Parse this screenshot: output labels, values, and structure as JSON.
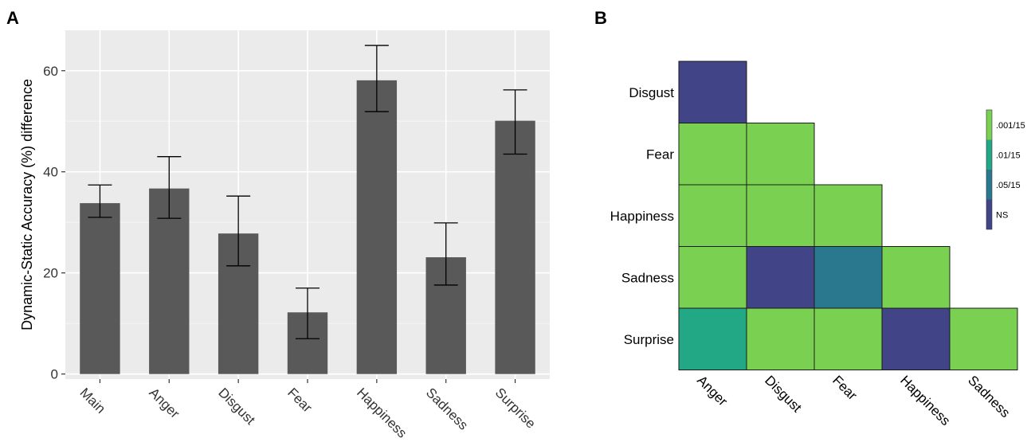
{
  "panels": {
    "a": "A",
    "b": "B"
  },
  "chart_data": [
    {
      "type": "bar",
      "panel": "A",
      "ylabel": "Dynamic-Static Accuracy (%) difference",
      "xlabel": "",
      "ylim": [
        -1,
        68
      ],
      "yticks": [
        0,
        20,
        40,
        60
      ],
      "categories": [
        "Main",
        "Anger",
        "Disgust",
        "Fear",
        "Happiness",
        "Sadness",
        "Surprise"
      ],
      "values": [
        33.8,
        36.7,
        27.8,
        12.2,
        58.1,
        23.1,
        50.1
      ],
      "error_low": [
        31.0,
        30.8,
        21.4,
        7.0,
        51.9,
        17.6,
        43.5
      ],
      "error_high": [
        37.4,
        43.0,
        35.2,
        17.0,
        65.0,
        29.9,
        56.2
      ],
      "bar_color": "#595959",
      "background": "#ebebeb",
      "grid": true
    },
    {
      "type": "heatmap",
      "panel": "B",
      "rows": [
        "Disgust",
        "Fear",
        "Happiness",
        "Sadness",
        "Surprise"
      ],
      "columns": [
        "Anger",
        "Disgust",
        "Fear",
        "Happiness",
        "Sadness"
      ],
      "cells": [
        [
          "NS"
        ],
        [
          ".001/15",
          ".001/15"
        ],
        [
          ".001/15",
          ".001/15",
          ".001/15"
        ],
        [
          ".001/15",
          "NS",
          ".05/15",
          ".001/15"
        ],
        [
          ".01/15",
          ".001/15",
          ".001/15",
          "NS",
          ".001/15"
        ]
      ],
      "legend": {
        "placement": "right",
        "levels": [
          {
            "label": ".001/15",
            "color": "#7ad151"
          },
          {
            "label": ".01/15",
            "color": "#22a884"
          },
          {
            "label": ".05/15",
            "color": "#2a788e"
          },
          {
            "label": "NS",
            "color": "#414487"
          }
        ]
      }
    }
  ]
}
